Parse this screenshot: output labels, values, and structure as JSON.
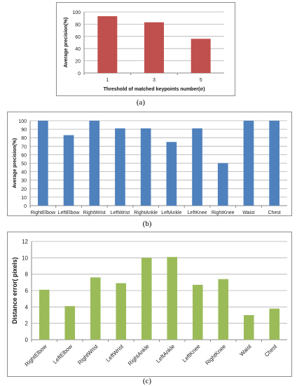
{
  "captions": {
    "a": "(a)",
    "b": "(b)",
    "c": "(c)"
  },
  "chart_data": [
    {
      "type": "bar",
      "categories": [
        "1",
        "3",
        "5"
      ],
      "values": [
        93,
        83,
        56
      ],
      "xlabel": "Threshold of matched keypoints number(σ)",
      "ylabel": "Average precision(%)",
      "ylim": [
        0,
        100
      ],
      "yticks": [
        0,
        20,
        40,
        60,
        80,
        100
      ],
      "grid": true,
      "bar_color": "#c0504d"
    },
    {
      "type": "bar",
      "categories": [
        "RightElbow",
        "LeftElbow",
        "RightWrist",
        "LeftWrist",
        "RightAnkle",
        "LeftAnkle",
        "LeftKnee",
        "RightKnee",
        "Waist",
        "Chest"
      ],
      "values": [
        100,
        83,
        100,
        91,
        91,
        75,
        91,
        50,
        100,
        100
      ],
      "xlabel": "",
      "ylabel": "Average precision(%)",
      "ylim": [
        0,
        100
      ],
      "yticks": [
        0,
        10,
        20,
        30,
        40,
        50,
        60,
        70,
        80,
        90,
        100
      ],
      "grid": true,
      "bar_color": "#4f81bd"
    },
    {
      "type": "bar",
      "categories": [
        "RightElbow",
        "LeftElbow",
        "RightWrist",
        "LeftWrist",
        "RightAnkle",
        "LeftAnkle",
        "LeftKnee",
        "RightKnee",
        "Waist",
        "Chest"
      ],
      "values": [
        6.1,
        4.1,
        7.6,
        6.9,
        10.0,
        10.1,
        6.7,
        7.4,
        3.0,
        3.8
      ],
      "xlabel": "",
      "ylabel": "Distance error( pixels)",
      "ylim": [
        0,
        12
      ],
      "yticks": [
        0,
        2,
        4,
        6,
        8,
        10,
        12
      ],
      "grid": true,
      "bar_color": "#9bbb59"
    }
  ]
}
